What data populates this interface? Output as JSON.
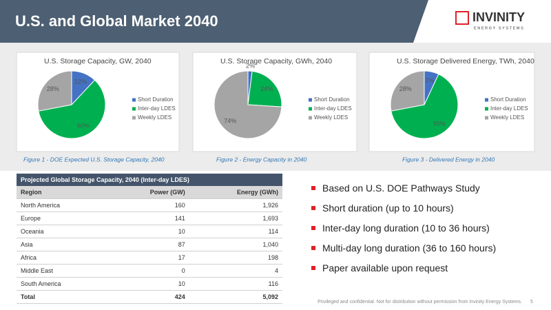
{
  "header": {
    "title": "U.S. and Global Market 2040",
    "logo": "INVINITY",
    "logo_sub": "ENERGY SYSTEMS"
  },
  "chart_data": [
    {
      "type": "pie",
      "title": "U.S. Storage Capacity, GW, 2040",
      "categories": [
        "Short Duration",
        "Inter-day LDES",
        "Weekly LDES"
      ],
      "values": [
        12,
        60,
        28
      ],
      "value_labels": [
        "12%",
        "60%",
        "28%"
      ],
      "colors": [
        "#4472c4",
        "#00b050",
        "#a5a5a5"
      ],
      "caption": "Figure 1 - DOE Expected U.S. Storage Capacity, 2040"
    },
    {
      "type": "pie",
      "title": "U.S. Storage Capacity, GWh, 2040",
      "categories": [
        "Short Duration",
        "Inter-day LDES",
        "Weekly LDES"
      ],
      "values": [
        2,
        24,
        74
      ],
      "value_labels": [
        "2%",
        "24%",
        "74%"
      ],
      "colors": [
        "#4472c4",
        "#00b050",
        "#a5a5a5"
      ],
      "caption": "Figure 2 - Energy Capacity in 2040"
    },
    {
      "type": "pie",
      "title": "U.S. Storage Delivered Energy, TWh, 2040",
      "categories": [
        "Short Duration",
        "Inter-day LDES",
        "Weekly LDES"
      ],
      "values": [
        7,
        65,
        28
      ],
      "value_labels": [
        "7%",
        "65%",
        "28%"
      ],
      "colors": [
        "#4472c4",
        "#00b050",
        "#a5a5a5"
      ],
      "caption": "Figure 3 - Delivered Energy in 2040"
    }
  ],
  "table": {
    "title": "Projected Global Storage Capacity, 2040 (Inter-day LDES)",
    "columns": [
      "Region",
      "Power (GW)",
      "Energy (GWh)"
    ],
    "rows": [
      [
        "North America",
        "160",
        "1,926"
      ],
      [
        "Europe",
        "141",
        "1,693"
      ],
      [
        "Oceania",
        "10",
        "114"
      ],
      [
        "Asia",
        "87",
        "1,040"
      ],
      [
        "Africa",
        "17",
        "198"
      ],
      [
        "Middle East",
        "0",
        "4"
      ],
      [
        "South America",
        "10",
        "116"
      ],
      [
        "Total",
        "424",
        "5,092"
      ]
    ]
  },
  "bullets": [
    "Based on U.S. DOE Pathways Study",
    "Short duration (up to 10 hours)",
    "Inter-day long duration (10 to 36 hours)",
    "Multi-day long duration (36 to 160 hours)",
    "Paper available upon request"
  ],
  "footer": {
    "text": "Privileged and confidential. Not for distribution without permission from Invinity Energy Systems.",
    "page": "5"
  }
}
